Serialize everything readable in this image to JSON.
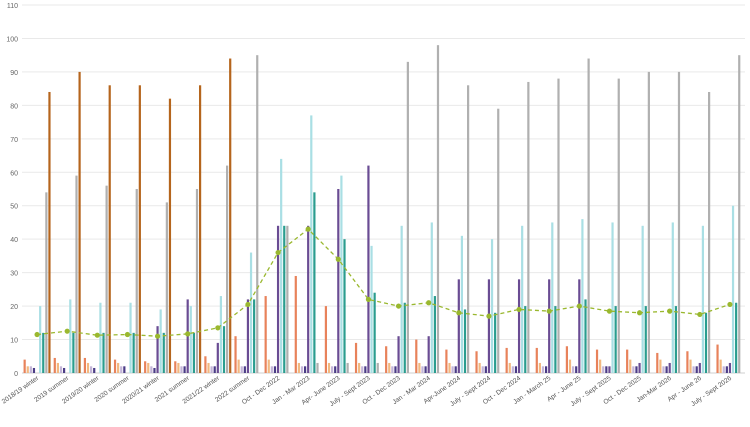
{
  "chart_data": {
    "type": "bar",
    "title": "",
    "xlabel": "",
    "ylabel": "",
    "ylim": [
      0,
      110
    ],
    "yticks": [
      0,
      10,
      20,
      30,
      40,
      50,
      60,
      70,
      80,
      90,
      100,
      110
    ],
    "grid": true,
    "legend": "none",
    "categories": [
      "2018/19 winter",
      "2019 summer",
      "2019/20 winter",
      "2020 summer",
      "2020/21 winter",
      "2021 summer",
      "2021/22 winter",
      "2022 summer",
      "Oct - Dec 2022",
      "Jan - Mar 2023",
      "Apr- June 2023",
      "July - Sept 2023",
      "Oct - Dec 2023",
      "Jan - Mar 2024",
      "Apr-June 2024",
      "July - Sept 2024",
      "Oct - Dec 2024",
      "Jan - March 25",
      "Apr - June 25",
      "July - Sept 2025",
      "Oct - Dec 2025",
      "Jan-Mar 2026",
      "Apr - June 26",
      "July - Sept 2026"
    ],
    "series": [
      {
        "color": "#e8825b",
        "type": "bar",
        "values": [
          4,
          4.5,
          4.5,
          4,
          3.5,
          3.5,
          5,
          11,
          23,
          29,
          20,
          9,
          8,
          10,
          7,
          6.5,
          7.5,
          7.5,
          8,
          7,
          7,
          6,
          6.5,
          8.5
        ]
      },
      {
        "color": "#f2b880",
        "type": "bar",
        "values": [
          2,
          3,
          3,
          3,
          3,
          3,
          3,
          4,
          4,
          3,
          3,
          3,
          3,
          3,
          3,
          3,
          3,
          3,
          4,
          4,
          4,
          4,
          4,
          4
        ]
      },
      {
        "color": "#c4b5d8",
        "type": "bar",
        "values": [
          2,
          2,
          2,
          2,
          2,
          2,
          2,
          2,
          2,
          2,
          2,
          2,
          2,
          2,
          2,
          2,
          2,
          2,
          2,
          2,
          2,
          2,
          2,
          2
        ]
      },
      {
        "color": "#4b3c86",
        "type": "bar",
        "values": [
          1.5,
          1.5,
          1.5,
          2,
          1.5,
          2,
          2,
          2,
          2,
          2,
          2,
          2,
          2,
          2,
          2,
          2,
          2,
          2,
          2,
          2,
          2,
          2,
          2,
          2
        ]
      },
      {
        "color": "#6a4c93",
        "type": "bar",
        "values": [
          0,
          0,
          0,
          0,
          14,
          22,
          9,
          22,
          44,
          44,
          55,
          62,
          11,
          11,
          28,
          28,
          28,
          28,
          28,
          2,
          3,
          3,
          3,
          3
        ]
      },
      {
        "color": "#a9dfe4",
        "type": "bar",
        "values": [
          20,
          22,
          21,
          21,
          19,
          20,
          23,
          36,
          64,
          77,
          59,
          38,
          44,
          45,
          41,
          40,
          44,
          45,
          46,
          45,
          44,
          45,
          44,
          50
        ]
      },
      {
        "color": "#2a9d8f",
        "type": "bar",
        "values": [
          12,
          12,
          12,
          12,
          12,
          12,
          14,
          22,
          44,
          54,
          40,
          24,
          21,
          23,
          19,
          18,
          20,
          20,
          22,
          20,
          20,
          20,
          18,
          21
        ]
      },
      {
        "color": "#b0b0b0",
        "type": "bar",
        "values": [
          54,
          59,
          56,
          55,
          51,
          55,
          62,
          95,
          44,
          3,
          3,
          3,
          93,
          98,
          86,
          79,
          87,
          88,
          94,
          88,
          90,
          90,
          84,
          95
        ]
      },
      {
        "color": "#b5651d",
        "type": "bar",
        "values": [
          84,
          90,
          86,
          86,
          82,
          86,
          94,
          0,
          0,
          0,
          0,
          0,
          0,
          0,
          0,
          0,
          0,
          0,
          0,
          0,
          0,
          0,
          0,
          0
        ]
      },
      {
        "color": "#9ab82f",
        "type": "line",
        "values": [
          11.5,
          12.5,
          11.3,
          11.5,
          11,
          11.7,
          13.5,
          20.5,
          36,
          43,
          34,
          22,
          20,
          21,
          18,
          17,
          19,
          18.5,
          20,
          18.5,
          18,
          18.5,
          17.5,
          20.5
        ]
      }
    ]
  }
}
